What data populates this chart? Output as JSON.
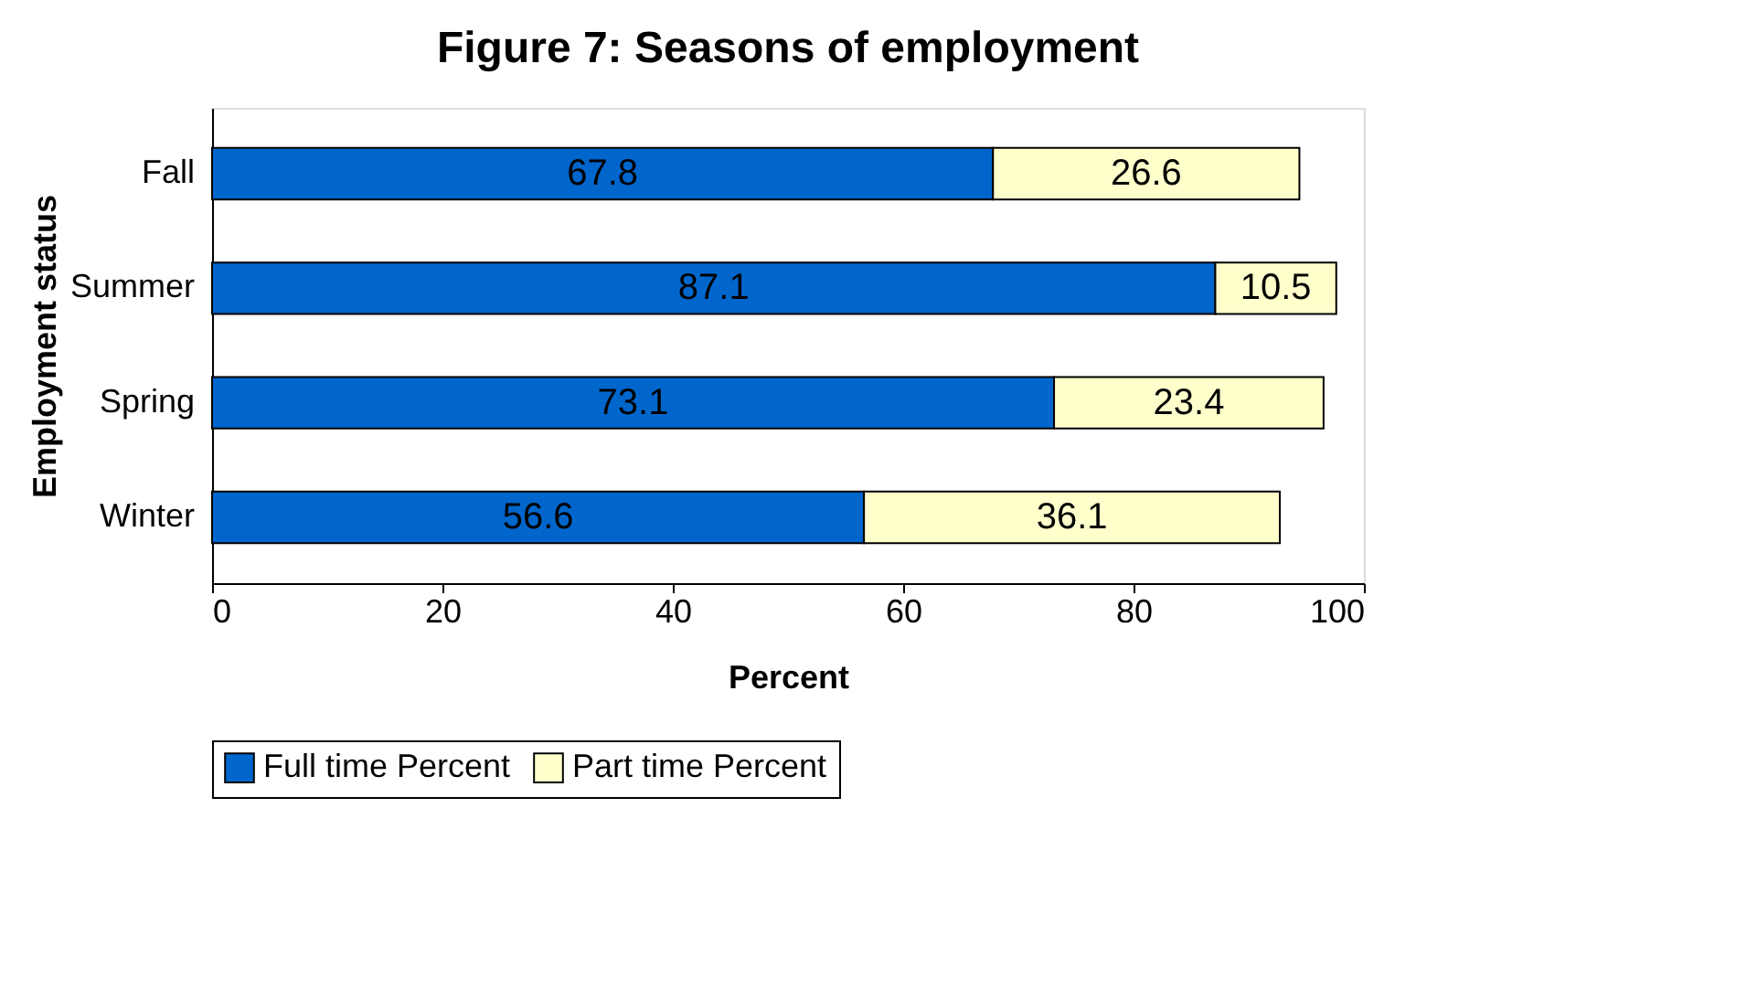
{
  "chart_data": {
    "type": "bar",
    "orientation": "horizontal",
    "stacked": true,
    "title": "Figure 7:  Seasons of employment",
    "xlabel": "Percent",
    "ylabel": "Employment status",
    "categories": [
      "Fall",
      "Summer",
      "Spring",
      "Winter"
    ],
    "series": [
      {
        "name": "Full time Percent",
        "color": "#0066cc",
        "values": [
          67.8,
          87.1,
          73.1,
          56.6
        ]
      },
      {
        "name": "Part time Percent",
        "color": "#ffffcc",
        "values": [
          26.6,
          10.5,
          23.4,
          36.1
        ]
      }
    ],
    "xlim": [
      0,
      100
    ],
    "xticks": [
      0,
      20,
      40,
      60,
      80,
      100
    ],
    "data_labels": true,
    "grid": false,
    "legend": "bottom"
  }
}
